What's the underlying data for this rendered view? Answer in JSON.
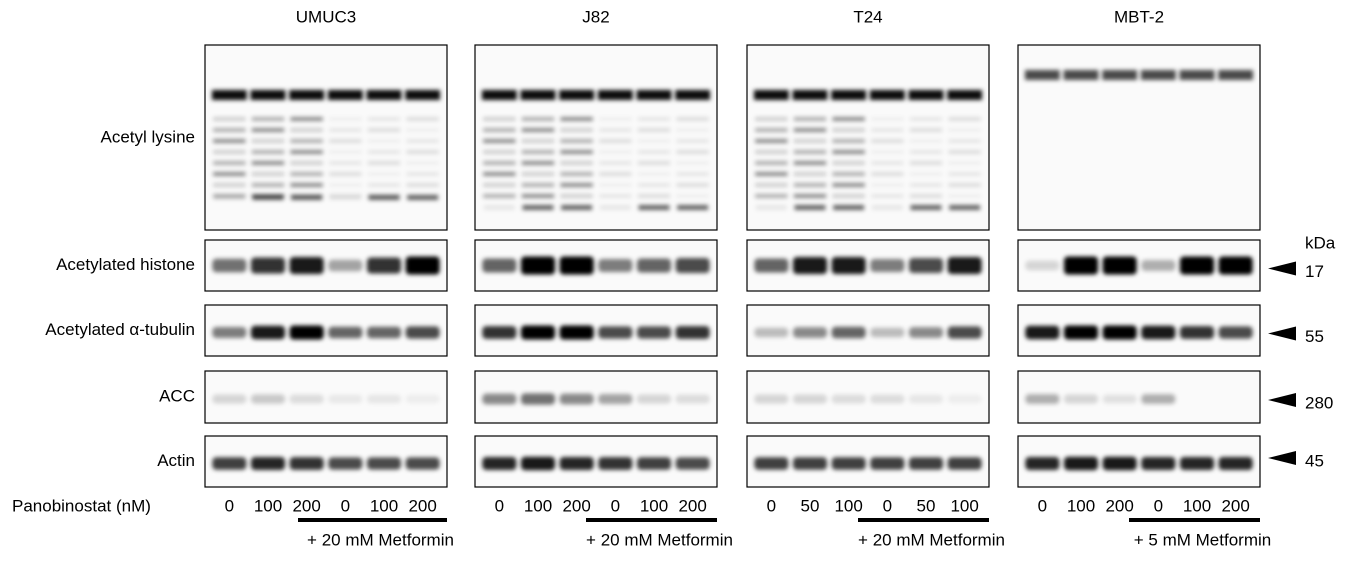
{
  "panels": [
    {
      "title": "UMUC3",
      "lanes": [
        0,
        100,
        200,
        0,
        100,
        200
      ],
      "treatment": "+ 20 mM Metformin"
    },
    {
      "title": "J82",
      "lanes": [
        0,
        100,
        200,
        0,
        100,
        200
      ],
      "treatment": "+ 20 mM Metformin"
    },
    {
      "title": "T24",
      "lanes": [
        0,
        50,
        100,
        0,
        50,
        100
      ],
      "treatment": "+ 20 mM Metformin"
    },
    {
      "title": "MBT-2",
      "lanes": [
        0,
        100,
        200,
        0,
        100,
        200
      ],
      "treatment": "+ 5 mM Metformin"
    }
  ],
  "rows": [
    {
      "label": "Acetyl lysine"
    },
    {
      "label": "Acetylated histone",
      "marker": "17"
    },
    {
      "label": "Acetylated α-tubulin",
      "marker": "55"
    },
    {
      "label": "ACC",
      "marker": "280"
    },
    {
      "label": "Actin",
      "marker": "45"
    }
  ],
  "kda_unit": "kDa",
  "lane_axis_label": "Panobinostat (nM)"
}
